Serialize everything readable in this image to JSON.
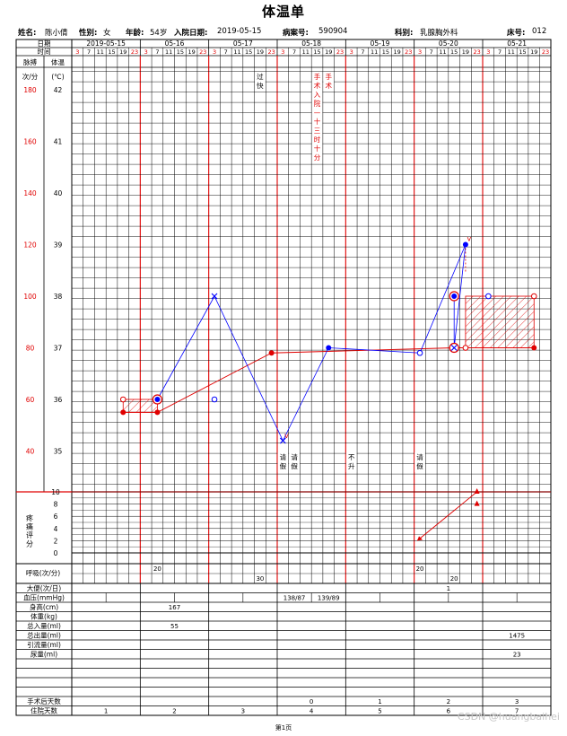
{
  "title": "体温单",
  "patient": [
    {
      "label": "姓名:",
      "value": "陈小倩"
    },
    {
      "label": "性别:",
      "value": "女"
    },
    {
      "label": "年龄:",
      "value": "54岁"
    },
    {
      "label": "入院日期:",
      "value": "2019-05-15"
    },
    {
      "label": "病案号:",
      "value": "590904"
    },
    {
      "label": "科别:",
      "value": "乳腺胸外科"
    },
    {
      "label": "床号:",
      "value": "012"
    }
  ],
  "header": {
    "date_label": "日期",
    "time_label": "时间",
    "pulse_label": "脉搏",
    "temp_label": "体温",
    "pulse_unit": "次/分",
    "temp_unit": "(℃)"
  },
  "dates": [
    "2019-05-15",
    "05-16",
    "05-17",
    "05-18",
    "05-19",
    "05-20",
    "05-21"
  ],
  "times": [
    "3",
    "7",
    "11",
    "15",
    "19",
    "23"
  ],
  "red_times": [
    "3",
    "23"
  ],
  "pulse_ticks": [
    "180",
    "160",
    "140",
    "120",
    "100",
    "80",
    "60",
    "40"
  ],
  "temp_ticks": [
    "42",
    "41",
    "40",
    "39",
    "38",
    "37",
    "36",
    "35"
  ],
  "pain_label": "疼痛评分",
  "pain_ticks": [
    "10",
    "8",
    "6",
    "4",
    "2",
    "0"
  ],
  "notes": [
    {
      "text": "过快",
      "day": 2,
      "slot": 4,
      "row": "top",
      "color": "#000000"
    },
    {
      "text": "手术入院—十三时十分",
      "day": 3,
      "slot": 3,
      "row": "top",
      "color": "#e00000"
    },
    {
      "text": "手术",
      "day": 3,
      "slot": 4,
      "row": "top",
      "color": "#e00000"
    },
    {
      "text": "请假",
      "day": 3,
      "slot": 0,
      "row": "bottom",
      "color": "#000000"
    },
    {
      "text": "请假",
      "day": 3,
      "slot": 1,
      "row": "bottom",
      "color": "#000000"
    },
    {
      "text": "不升",
      "day": 4,
      "slot": 0,
      "row": "bottom",
      "color": "#000000"
    },
    {
      "text": "请假",
      "day": 5,
      "slot": 0,
      "row": "bottom",
      "color": "#000000"
    }
  ],
  "chart_data": {
    "type": "line",
    "x_unit": "date/time slot",
    "temperature": {
      "name": "体温",
      "color": "#0000ff",
      "ylim": [
        34,
        42
      ],
      "points": [
        {
          "day": 1,
          "slot": 1,
          "value": 36.0,
          "marker": "dot-ring"
        },
        {
          "day": 2,
          "slot": 0,
          "value": 38.0,
          "marker": "x"
        },
        {
          "day": 3,
          "slot": 0,
          "value": 35.2,
          "marker": "x"
        },
        {
          "day": 3,
          "slot": 4,
          "value": 37.0,
          "marker": "dot"
        },
        {
          "day": 5,
          "slot": 0,
          "value": 36.9,
          "marker": "circle"
        },
        {
          "day": 5,
          "slot": 4,
          "value": 39.0,
          "marker": "dot"
        },
        {
          "day": 5,
          "slot": 3,
          "value": 37.0,
          "marker": "x-ring"
        },
        {
          "day": 5,
          "slot": 3,
          "value": 38.0,
          "marker": "dot-ring"
        }
      ],
      "extra_markers": [
        {
          "day": 2,
          "slot": 0,
          "value": 36.0,
          "marker": "circle"
        },
        {
          "day": 6,
          "slot": 0,
          "value": 38.0,
          "marker": "circle"
        }
      ]
    },
    "pulse": {
      "name": "脉搏",
      "color": "#e00000",
      "ylim": [
        20,
        180
      ],
      "points": [
        {
          "day": 0,
          "slot": 4,
          "value": 55
        },
        {
          "day": 1,
          "slot": 1,
          "value": 55
        },
        {
          "day": 2,
          "slot": 5,
          "value": 78
        },
        {
          "day": 5,
          "slot": 3,
          "value": 80
        },
        {
          "day": 5,
          "slot": 4,
          "value": 80,
          "marker": "circle"
        },
        {
          "day": 6,
          "slot": 4,
          "value": 80
        }
      ],
      "pulse_deficit": [
        {
          "x": [
            [
              0,
              4
            ],
            [
              1,
              1
            ]
          ],
          "top": 60,
          "bottom": 55
        },
        {
          "x": [
            [
              5,
              4
            ],
            [
              6,
              4
            ]
          ],
          "top": 100,
          "bottom": 80
        }
      ],
      "extra_markers": [
        {
          "day": 0,
          "slot": 4,
          "value": 60,
          "marker": "circle"
        },
        {
          "day": 6,
          "slot": 4,
          "value": 100,
          "marker": "circle"
        }
      ]
    },
    "pain": {
      "name": "疼痛评分",
      "color": "#e00000",
      "ylim": [
        0,
        10
      ],
      "points": [
        {
          "day": 5,
          "slot": 0,
          "value": 2
        },
        {
          "day": 5,
          "slot": 5,
          "value": 10
        },
        {
          "day": 5,
          "slot": 5,
          "value": 8
        }
      ]
    }
  },
  "rows": {
    "resp_label": "呼吸(次/分)",
    "resp_values": [
      {
        "day": 1,
        "slot": 1,
        "value": "20",
        "pos": "up"
      },
      {
        "day": 2,
        "slot": 4,
        "value": "30",
        "pos": "down"
      },
      {
        "day": 5,
        "slot": 0,
        "value": "20",
        "pos": "up"
      },
      {
        "day": 5,
        "slot": 3,
        "value": "20",
        "pos": "down"
      }
    ],
    "table": [
      {
        "label": "大便(次/日)",
        "values": [
          "",
          "",
          "",
          "",
          "",
          "1",
          ""
        ]
      },
      {
        "label": "血压(mmHg)",
        "split": true,
        "values": [
          [
            "",
            ""
          ],
          [
            "",
            ""
          ],
          [
            "",
            ""
          ],
          [
            "138/87",
            "139/89"
          ],
          [
            "",
            ""
          ],
          [
            "",
            ""
          ],
          [
            "",
            ""
          ]
        ]
      },
      {
        "label": "身高(cm)",
        "values": [
          "",
          "167",
          "",
          "",
          "",
          "",
          ""
        ]
      },
      {
        "label": "体重(kg)",
        "values": [
          "",
          "",
          "",
          "",
          "",
          "",
          ""
        ]
      },
      {
        "label": "总入量(ml)",
        "values": [
          "",
          "55",
          "",
          "",
          "",
          "",
          ""
        ]
      },
      {
        "label": "总出量(ml)",
        "values": [
          "",
          "",
          "",
          "",
          "",
          "",
          "1475"
        ]
      },
      {
        "label": "引流量(ml)",
        "values": [
          "",
          "",
          "",
          "",
          "",
          "",
          ""
        ]
      },
      {
        "label": "尿量(ml)",
        "values": [
          "",
          "",
          "",
          "",
          "",
          "",
          "23"
        ]
      },
      {
        "label": "",
        "values": [
          "",
          "",
          "",
          "",
          "",
          "",
          ""
        ]
      },
      {
        "label": "",
        "values": [
          "",
          "",
          "",
          "",
          "",
          "",
          ""
        ]
      },
      {
        "label": "",
        "values": [
          "",
          "",
          "",
          "",
          "",
          "",
          ""
        ]
      },
      {
        "label": "",
        "values": [
          "",
          "",
          "",
          "",
          "",
          "",
          ""
        ]
      },
      {
        "label": "手术后天数",
        "values": [
          "",
          "",
          "",
          "0",
          "1",
          "2",
          "3"
        ]
      },
      {
        "label": "住院天数",
        "values": [
          "1",
          "2",
          "3",
          "4",
          "5",
          "6",
          "7"
        ]
      }
    ]
  },
  "footer": "第1页",
  "watermark": "CSDN @huangbaihei"
}
